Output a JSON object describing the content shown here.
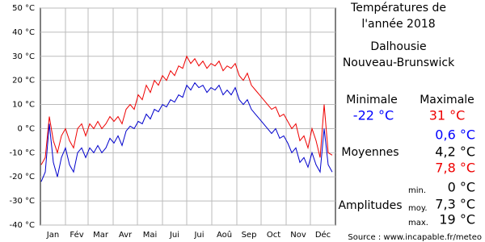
{
  "chart_data": {
    "type": "line",
    "x": [
      1,
      6,
      11,
      16,
      21,
      26,
      31,
      36,
      41,
      46,
      51,
      56,
      61,
      66,
      71,
      76,
      81,
      86,
      91,
      96,
      101,
      106,
      111,
      116,
      121,
      126,
      131,
      136,
      141,
      146,
      151,
      156,
      161,
      166,
      171,
      176,
      181,
      186,
      191,
      196,
      201,
      206,
      211,
      216,
      221,
      226,
      231,
      236,
      241,
      246,
      251,
      256,
      261,
      266,
      271,
      276,
      281,
      286,
      291,
      296,
      301,
      306,
      311,
      316,
      321,
      326,
      331,
      336,
      341,
      346,
      351,
      356,
      361
    ],
    "series": [
      {
        "name": "Maximale",
        "color": "#ee0000",
        "values": [
          -15,
          -12,
          5,
          -5,
          -10,
          -3,
          0,
          -5,
          -8,
          0,
          2,
          -3,
          2,
          0,
          3,
          0,
          2,
          5,
          3,
          5,
          2,
          8,
          10,
          8,
          14,
          12,
          18,
          15,
          20,
          18,
          22,
          20,
          24,
          22,
          26,
          25,
          30,
          27,
          29,
          26,
          28,
          25,
          27,
          26,
          28,
          24,
          26,
          25,
          27,
          22,
          20,
          23,
          18,
          16,
          14,
          12,
          10,
          8,
          9,
          5,
          6,
          3,
          0,
          2,
          -5,
          -3,
          -8,
          0,
          -5,
          -12,
          10,
          -10,
          -11
        ]
      },
      {
        "name": "Minimale",
        "color": "#0000cc",
        "values": [
          -22,
          -18,
          2,
          -14,
          -20,
          -12,
          -8,
          -15,
          -18,
          -10,
          -8,
          -12,
          -8,
          -10,
          -7,
          -10,
          -8,
          -4,
          -6,
          -3,
          -7,
          -1,
          1,
          0,
          3,
          2,
          6,
          4,
          8,
          7,
          10,
          9,
          12,
          11,
          14,
          13,
          18,
          16,
          19,
          17,
          18,
          15,
          17,
          16,
          18,
          14,
          16,
          14,
          17,
          12,
          10,
          12,
          8,
          6,
          4,
          2,
          0,
          -2,
          0,
          -4,
          -3,
          -6,
          -10,
          -8,
          -14,
          -12,
          -16,
          -10,
          -15,
          -18,
          0,
          -15,
          -18
        ]
      }
    ],
    "xlim": [
      0,
      365
    ],
    "xticks": [
      {
        "value": 15.5,
        "label": "Jan"
      },
      {
        "value": 45,
        "label": "Fév"
      },
      {
        "value": 74.5,
        "label": "Mar"
      },
      {
        "value": 105,
        "label": "Avr"
      },
      {
        "value": 135.5,
        "label": "Mai"
      },
      {
        "value": 166,
        "label": "Jui"
      },
      {
        "value": 196.5,
        "label": "Jui"
      },
      {
        "value": 227.5,
        "label": "Aoû"
      },
      {
        "value": 258,
        "label": "Sep"
      },
      {
        "value": 288.5,
        "label": "Oct"
      },
      {
        "value": 319,
        "label": "Nov"
      },
      {
        "value": 349.5,
        "label": "Déc"
      }
    ],
    "xgrid": [
      31,
      59,
      90,
      120,
      151,
      181,
      212,
      243,
      273,
      304,
      334
    ],
    "ylim": [
      -40,
      50
    ],
    "yticks": [
      {
        "value": -40,
        "label": "-40 °C"
      },
      {
        "value": -30,
        "label": "-30 °C"
      },
      {
        "value": -20,
        "label": "-20 °C"
      },
      {
        "value": -10,
        "label": "-10 °C"
      },
      {
        "value": 0,
        "label": "0 °C"
      },
      {
        "value": 10,
        "label": "10 °C"
      },
      {
        "value": 20,
        "label": "20 °C"
      },
      {
        "value": 30,
        "label": "30 °C"
      },
      {
        "value": 40,
        "label": "40 °C"
      },
      {
        "value": 50,
        "label": "50 °C"
      }
    ],
    "grid": true
  },
  "panel": {
    "title1": "Températures de",
    "title2": "l'année 2018",
    "place1": "Dalhousie",
    "place2": "Nouveau-Brunswick",
    "min_label": "Minimale",
    "max_label": "Maximale",
    "min_value": "-22 °C",
    "max_value": "31 °C",
    "avg_label": "Moyennes",
    "avg_min": "0,6 °C",
    "avg_all": "4,2 °C",
    "avg_max": "7,8 °C",
    "amp_label": "Amplitudes",
    "amp_min_label": "min.",
    "amp_min": "0 °C",
    "amp_avg_label": "moy.",
    "amp_avg": "7,3 °C",
    "amp_max_label": "max.",
    "amp_max": "19 °C",
    "source": "Source : www.incapable.fr/meteo"
  }
}
